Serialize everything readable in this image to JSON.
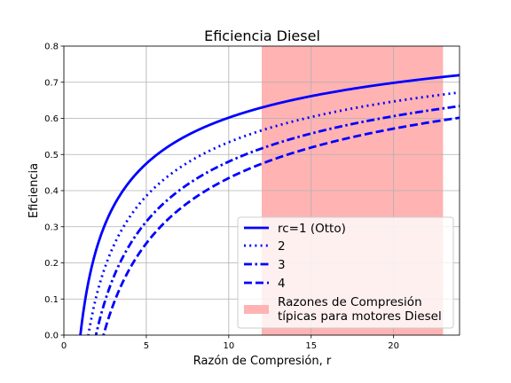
{
  "chart_data": {
    "type": "line",
    "title": "Eficiencia Diesel",
    "xlabel": "Razón de Compresión, r",
    "ylabel": "Eficiencia",
    "xlim": [
      0,
      24
    ],
    "ylim": [
      0,
      0.8
    ],
    "xticks": [
      0,
      5,
      10,
      15,
      20
    ],
    "yticks": [
      0.0,
      0.1,
      0.2,
      0.3,
      0.4,
      0.5,
      0.6,
      0.7,
      0.8
    ],
    "grid": true,
    "legend_position": "lower-right",
    "gamma": 1.4,
    "x_range": [
      1,
      24
    ],
    "series": [
      {
        "name": "rc=1 (Otto)",
        "rc": 1,
        "color": "#0000ff",
        "style": "solid"
      },
      {
        "name": "2",
        "rc": 2,
        "color": "#0000ff",
        "style": "dotted"
      },
      {
        "name": "3",
        "rc": 3,
        "color": "#0000ff",
        "style": "dashdot"
      },
      {
        "name": "4",
        "rc": 4,
        "color": "#0000ff",
        "style": "dashed"
      }
    ],
    "shaded_region": {
      "name": "Razones de Compresión\ntípicas para motores Diesel",
      "x_start": 12,
      "x_end": 23,
      "color": "#ffb3b3"
    }
  }
}
